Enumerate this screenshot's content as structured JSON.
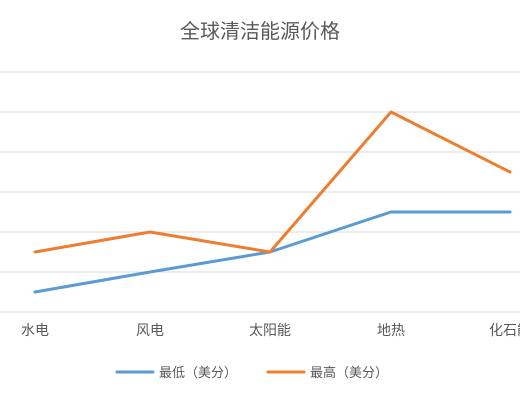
{
  "chart_data": {
    "type": "line",
    "title": "全球清洁能源价格",
    "categories": [
      "水电",
      "风电",
      "太阳能",
      "地热",
      "化石能"
    ],
    "xlabel": "",
    "ylabel": "",
    "ylim": [
      0,
      12
    ],
    "grid": true,
    "legend_position": "bottom",
    "series": [
      {
        "name": "最低（美分）",
        "color": "#5b9bd5",
        "values": [
          1,
          2,
          3,
          5,
          5
        ]
      },
      {
        "name": "最高（美分）",
        "color": "#ed7d31",
        "values": [
          3,
          4,
          3,
          10,
          7
        ]
      }
    ]
  }
}
